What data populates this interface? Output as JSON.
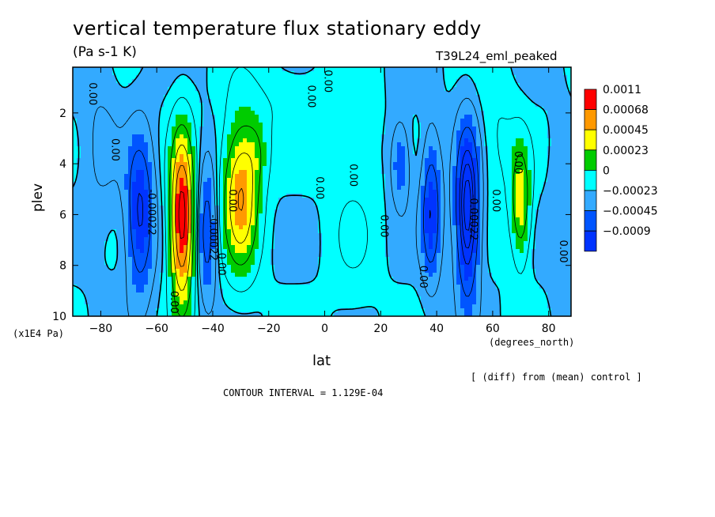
{
  "chart_data": {
    "type": "heatmap",
    "title": "vertical temperature flux stationary eddy",
    "subtitle": "(Pa s-1 K)",
    "run_label": "T39L24_eml_peaked",
    "xlabel": "lat",
    "x_units": "(degrees_north)",
    "ylabel": "plev",
    "y_units": "(x1E4 Pa)",
    "xlim": [
      -90,
      88
    ],
    "ylim": [
      10,
      0.2
    ],
    "x_ticks": [
      -80,
      -60,
      -40,
      -20,
      0,
      20,
      40,
      60,
      80
    ],
    "y_ticks": [
      2,
      4,
      6,
      8,
      10
    ],
    "contour_interval_text": "CONTOUR INTERVAL = 1.129E-04",
    "note": "[ (diff) from (mean) control ]",
    "levels": [
      {
        "label": "0.0011",
        "color": "#ff0000"
      },
      {
        "label": "0.00068",
        "color": "#ff9900"
      },
      {
        "label": "0.00045",
        "color": "#ffff00"
      },
      {
        "label": "0.00023",
        "color": "#00cc00"
      },
      {
        "label": "0",
        "color": "#00ffff"
      },
      {
        "label": "-0.00023",
        "color": "#33aaff"
      },
      {
        "label": "-0.00045",
        "color": "#0055ff"
      },
      {
        "label": "-0.0009",
        "color": ""
      }
    ],
    "contour_labels": [
      {
        "text": "0.00",
        "lat": -84,
        "p": 0.8
      },
      {
        "text": "0.00",
        "lat": -76,
        "p": 3.0
      },
      {
        "text": "0.00",
        "lat": -55,
        "p": 9.0
      },
      {
        "text": "-0.00022",
        "lat": -63,
        "p": 5.0
      },
      {
        "text": "-0.00022",
        "lat": -41,
        "p": 6.0
      },
      {
        "text": "0.00",
        "lat": -38,
        "p": 7.5
      },
      {
        "text": "0.00",
        "lat": -34,
        "p": 5.0
      },
      {
        "text": "0.00",
        "lat": -3,
        "p": 4.5
      },
      {
        "text": "0.00",
        "lat": 9,
        "p": 4.0
      },
      {
        "text": "0.00",
        "lat": 20,
        "p": 6.0
      },
      {
        "text": "0.00",
        "lat": 34,
        "p": 8.0
      },
      {
        "text": "-0.00022",
        "lat": 52,
        "p": 5.2
      },
      {
        "text": "0.00",
        "lat": 60,
        "p": 5.0
      },
      {
        "text": "0.00",
        "lat": 68,
        "p": 3.5
      },
      {
        "text": "0.00",
        "lat": 84,
        "p": 7.0
      },
      {
        "text": "0.00",
        "lat": -6,
        "p": 0.9
      },
      {
        "text": "0.00",
        "lat": 0,
        "p": 0.3
      }
    ]
  }
}
